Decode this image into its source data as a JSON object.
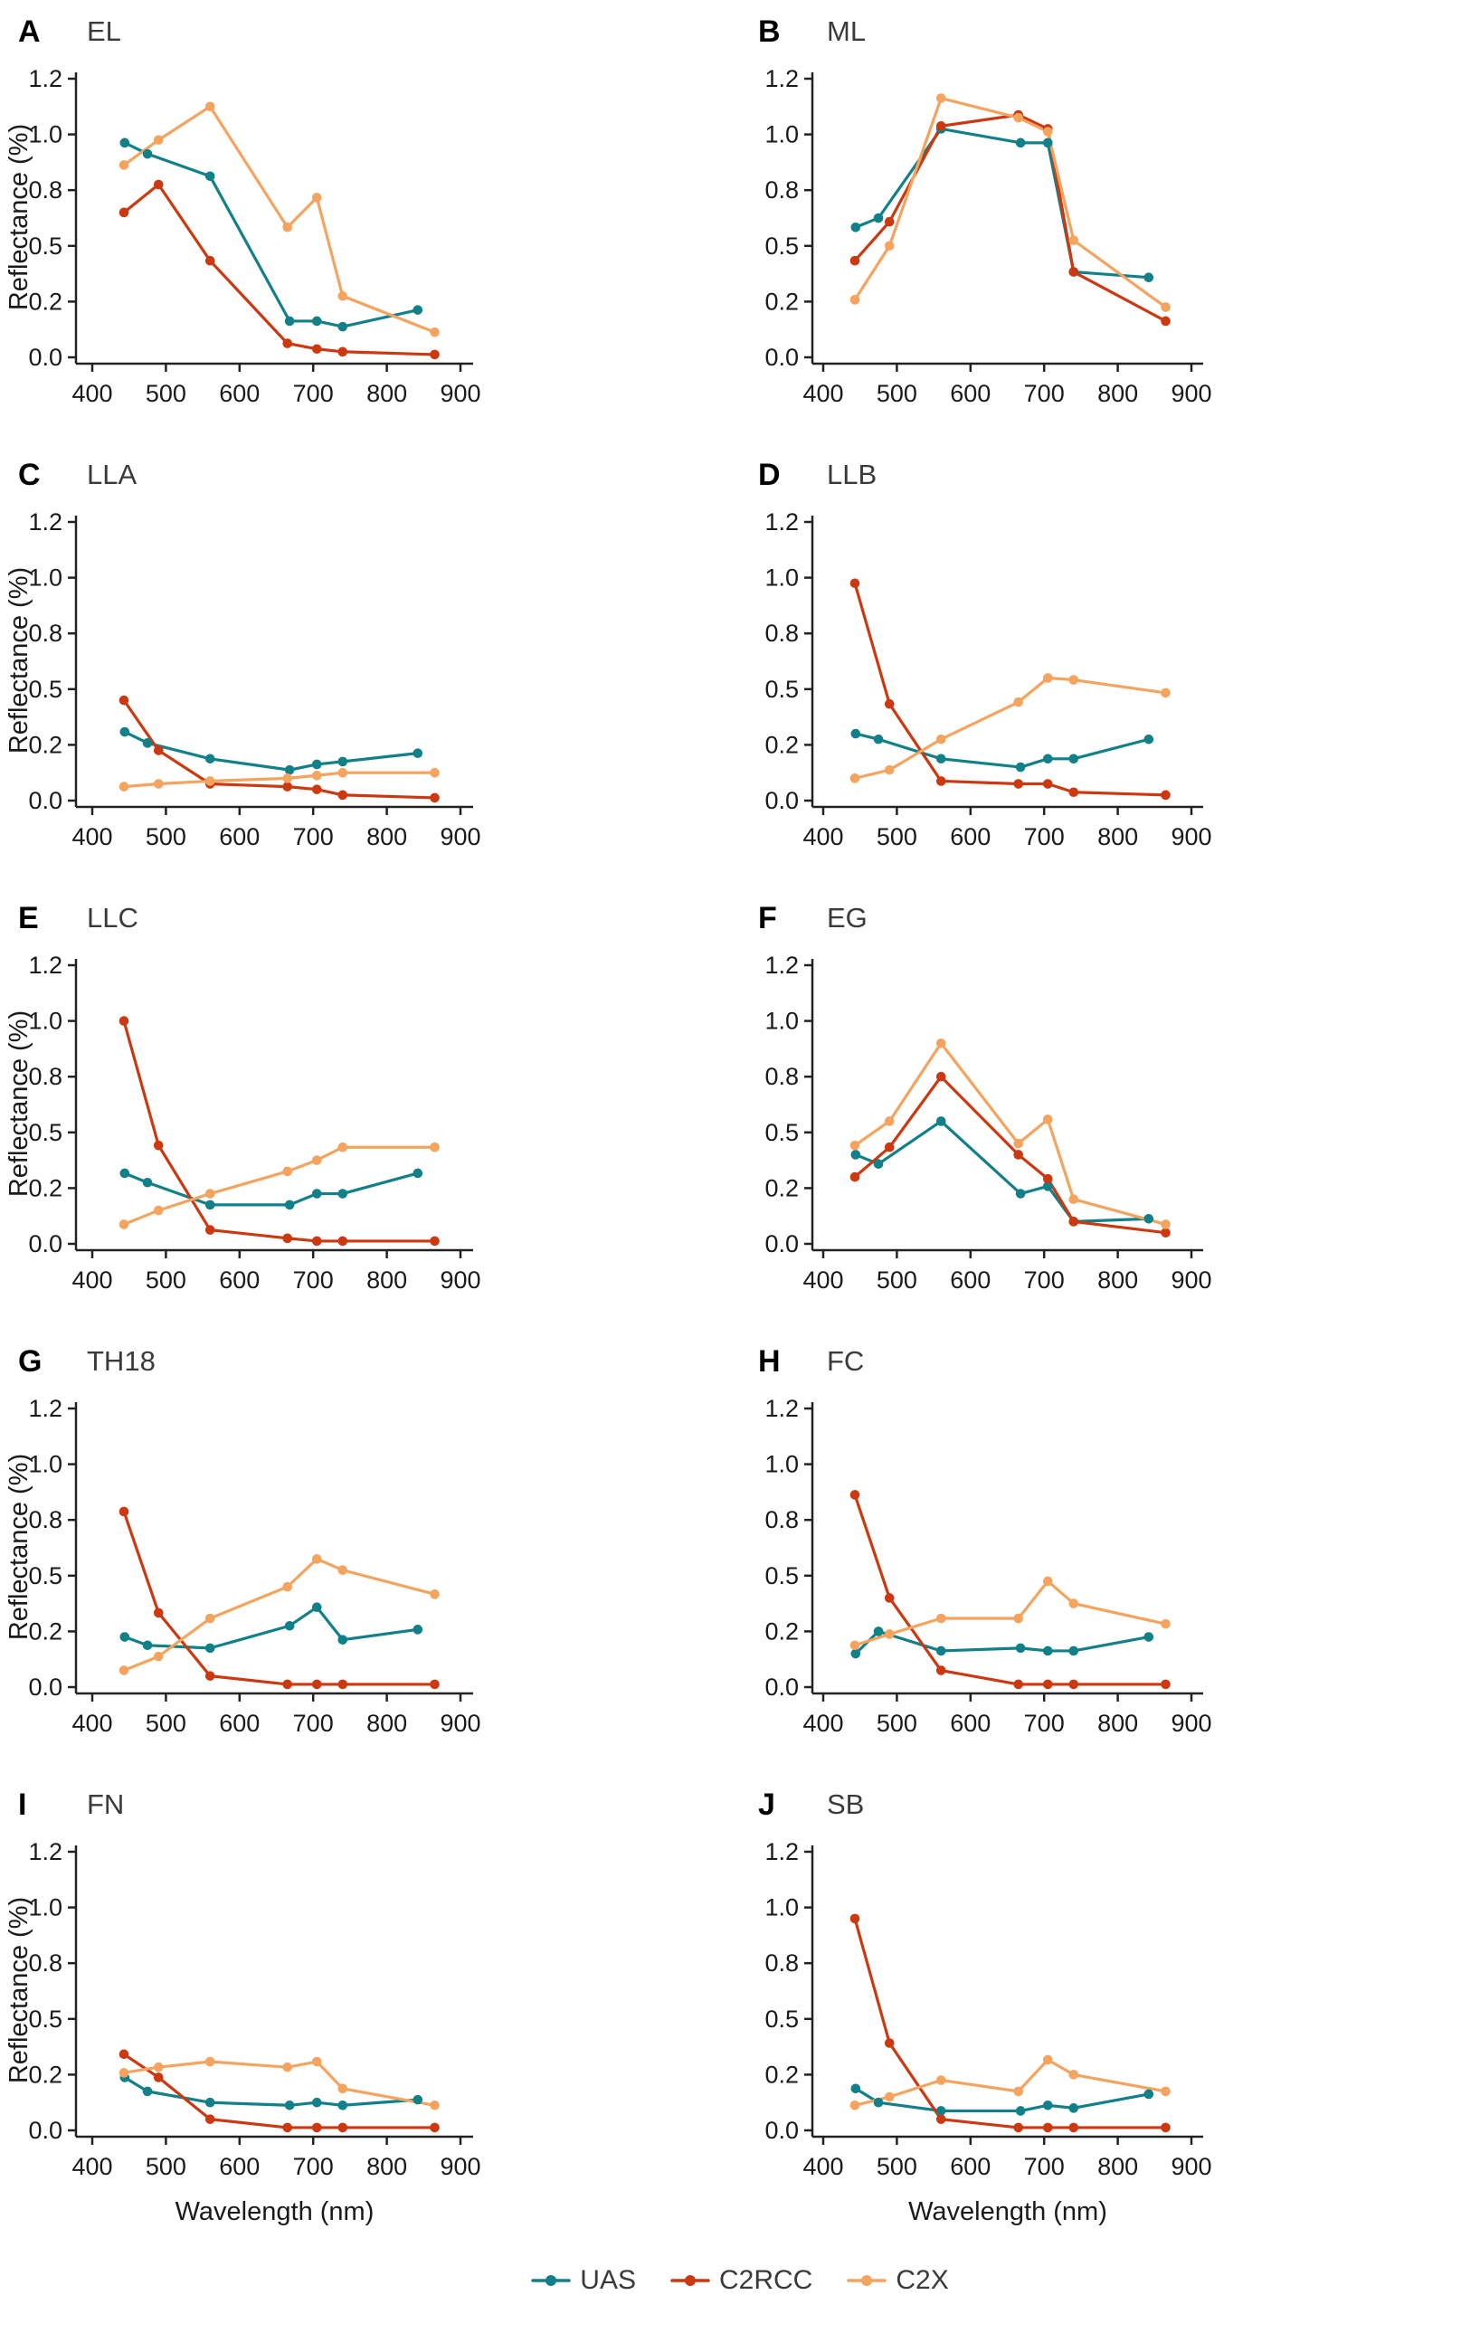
{
  "figure": {
    "x_axis_label": "Wavelength (nm)",
    "y_axis_label": "Reflectance (%)",
    "x_ticks": [
      400,
      500,
      600,
      700,
      800,
      900
    ],
    "y_tick_labels": [
      "0.0",
      "0.2",
      "0.5",
      "0.8",
      "1.0",
      "1.2"
    ],
    "y_breaks": [
      0,
      0.2,
      0.5,
      0.8,
      1.0,
      1.2
    ],
    "axis_color": "#222222",
    "tick_label_color": "#1a1a1a"
  },
  "legend": {
    "items": [
      {
        "label": "UAS",
        "color": "#128089"
      },
      {
        "label": "C2RCC",
        "color": "#CC3911"
      },
      {
        "label": "C2X",
        "color": "#F4A45F"
      }
    ]
  },
  "wavelengths": {
    "uas": [
      444,
      475,
      560,
      668,
      705,
      740,
      842
    ],
    "satellite": [
      443,
      490,
      560,
      665,
      705,
      740,
      865
    ]
  },
  "chart_data": [
    {
      "type": "line",
      "panel_letter": "A",
      "title": "EL",
      "xlabel": "Wavelength (nm)",
      "ylabel": "Reflectance (%)",
      "xlim": [
        375,
        918
      ],
      "ylim": [
        0,
        1.2
      ],
      "series": [
        {
          "name": "UAS",
          "x": "uas",
          "values": [
            0.97,
            0.93,
            0.85,
            0.13,
            0.13,
            0.11,
            0.17
          ]
        },
        {
          "name": "C2RCC",
          "x": "satellite",
          "values": [
            0.68,
            0.82,
            0.42,
            0.05,
            0.03,
            0.02,
            0.01
          ]
        },
        {
          "name": "C2X",
          "x": "satellite",
          "values": [
            0.89,
            0.98,
            1.1,
            0.6,
            0.76,
            0.23,
            0.09
          ]
        }
      ]
    },
    {
      "type": "line",
      "panel_letter": "B",
      "title": "ML",
      "xlim": [
        375,
        918
      ],
      "ylim": [
        0,
        1.2
      ],
      "series": [
        {
          "name": "UAS",
          "x": "uas",
          "values": [
            0.6,
            0.65,
            1.02,
            0.97,
            0.97,
            0.36,
            0.33
          ]
        },
        {
          "name": "C2RCC",
          "x": "satellite",
          "values": [
            0.42,
            0.63,
            1.03,
            1.07,
            1.02,
            0.36,
            0.13
          ]
        },
        {
          "name": "C2X",
          "x": "satellite",
          "values": [
            0.21,
            0.5,
            1.13,
            1.06,
            1.01,
            0.53,
            0.18
          ]
        }
      ]
    },
    {
      "type": "line",
      "panel_letter": "C",
      "title": "LLA",
      "xlim": [
        375,
        918
      ],
      "ylim": [
        0,
        1.2
      ],
      "series": [
        {
          "name": "UAS",
          "x": "uas",
          "values": [
            0.27,
            0.21,
            0.15,
            0.11,
            0.13,
            0.14,
            0.17
          ]
        },
        {
          "name": "C2RCC",
          "x": "satellite",
          "values": [
            0.44,
            0.18,
            0.06,
            0.05,
            0.04,
            0.02,
            0.01
          ]
        },
        {
          "name": "C2X",
          "x": "satellite",
          "values": [
            0.05,
            0.06,
            0.07,
            0.08,
            0.09,
            0.1,
            0.1
          ]
        }
      ]
    },
    {
      "type": "line",
      "panel_letter": "D",
      "title": "LLB",
      "xlim": [
        375,
        918
      ],
      "ylim": [
        0,
        1.2
      ],
      "series": [
        {
          "name": "UAS",
          "x": "uas",
          "values": [
            0.26,
            0.23,
            0.15,
            0.12,
            0.15,
            0.15,
            0.23
          ]
        },
        {
          "name": "C2RCC",
          "x": "satellite",
          "values": [
            0.98,
            0.42,
            0.07,
            0.06,
            0.06,
            0.03,
            0.02
          ]
        },
        {
          "name": "C2X",
          "x": "satellite",
          "values": [
            0.08,
            0.11,
            0.23,
            0.43,
            0.56,
            0.55,
            0.48
          ]
        }
      ]
    },
    {
      "type": "line",
      "panel_letter": "E",
      "title": "LLC",
      "xlim": [
        375,
        918
      ],
      "ylim": [
        0,
        1.2
      ],
      "series": [
        {
          "name": "UAS",
          "x": "uas",
          "values": [
            0.28,
            0.23,
            0.14,
            0.14,
            0.18,
            0.18,
            0.28
          ]
        },
        {
          "name": "C2RCC",
          "x": "satellite",
          "values": [
            1.0,
            0.43,
            0.05,
            0.02,
            0.01,
            0.01,
            0.01
          ]
        },
        {
          "name": "C2X",
          "x": "satellite",
          "values": [
            0.07,
            0.12,
            0.18,
            0.29,
            0.35,
            0.42,
            0.42
          ]
        }
      ]
    },
    {
      "type": "line",
      "panel_letter": "F",
      "title": "EG",
      "xlim": [
        375,
        918
      ],
      "ylim": [
        0,
        1.2
      ],
      "series": [
        {
          "name": "UAS",
          "x": "uas",
          "values": [
            0.38,
            0.33,
            0.56,
            0.18,
            0.21,
            0.08,
            0.09
          ]
        },
        {
          "name": "C2RCC",
          "x": "satellite",
          "values": [
            0.26,
            0.42,
            0.8,
            0.38,
            0.25,
            0.08,
            0.04
          ]
        },
        {
          "name": "C2X",
          "x": "satellite",
          "values": [
            0.43,
            0.56,
            0.92,
            0.44,
            0.57,
            0.16,
            0.07
          ]
        }
      ]
    },
    {
      "type": "line",
      "panel_letter": "G",
      "title": "TH18",
      "xlim": [
        375,
        918
      ],
      "ylim": [
        0,
        1.2
      ],
      "series": [
        {
          "name": "UAS",
          "x": "uas",
          "values": [
            0.18,
            0.15,
            0.14,
            0.23,
            0.33,
            0.17,
            0.21
          ]
        },
        {
          "name": "C2RCC",
          "x": "satellite",
          "values": [
            0.83,
            0.3,
            0.04,
            0.01,
            0.01,
            0.01,
            0.01
          ]
        },
        {
          "name": "C2X",
          "x": "satellite",
          "values": [
            0.06,
            0.11,
            0.27,
            0.44,
            0.59,
            0.53,
            0.4
          ]
        }
      ]
    },
    {
      "type": "line",
      "panel_letter": "H",
      "title": "FC",
      "xlim": [
        375,
        918
      ],
      "ylim": [
        0,
        1.2
      ],
      "series": [
        {
          "name": "UAS",
          "x": "uas",
          "values": [
            0.12,
            0.2,
            0.13,
            0.14,
            0.13,
            0.13,
            0.18
          ]
        },
        {
          "name": "C2RCC",
          "x": "satellite",
          "values": [
            0.89,
            0.38,
            0.06,
            0.01,
            0.01,
            0.01,
            0.01
          ]
        },
        {
          "name": "C2X",
          "x": "satellite",
          "values": [
            0.15,
            0.19,
            0.27,
            0.27,
            0.47,
            0.35,
            0.24
          ]
        }
      ]
    },
    {
      "type": "line",
      "panel_letter": "I",
      "title": "FN",
      "xlim": [
        375,
        918
      ],
      "ylim": [
        0,
        1.2
      ],
      "series": [
        {
          "name": "UAS",
          "x": "uas",
          "values": [
            0.19,
            0.14,
            0.1,
            0.09,
            0.1,
            0.09,
            0.11
          ]
        },
        {
          "name": "C2RCC",
          "x": "satellite",
          "values": [
            0.31,
            0.19,
            0.04,
            0.01,
            0.01,
            0.01,
            0.01
          ]
        },
        {
          "name": "C2X",
          "x": "satellite",
          "values": [
            0.21,
            0.24,
            0.27,
            0.24,
            0.27,
            0.15,
            0.09
          ]
        }
      ]
    },
    {
      "type": "line",
      "panel_letter": "J",
      "title": "SB",
      "xlim": [
        375,
        918
      ],
      "ylim": [
        0,
        1.2
      ],
      "series": [
        {
          "name": "UAS",
          "x": "uas",
          "values": [
            0.15,
            0.1,
            0.07,
            0.07,
            0.09,
            0.08,
            0.13
          ]
        },
        {
          "name": "C2RCC",
          "x": "satellite",
          "values": [
            0.96,
            0.37,
            0.04,
            0.01,
            0.01,
            0.01,
            0.01
          ]
        },
        {
          "name": "C2X",
          "x": "satellite",
          "values": [
            0.09,
            0.12,
            0.18,
            0.14,
            0.28,
            0.2,
            0.14
          ]
        }
      ]
    }
  ]
}
